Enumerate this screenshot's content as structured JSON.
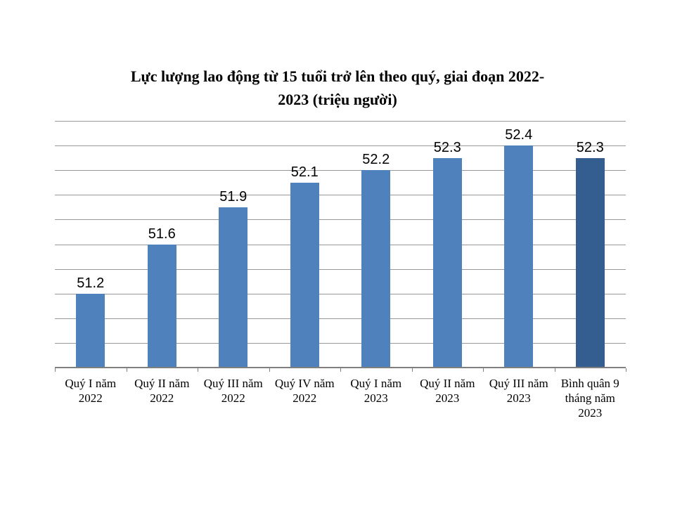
{
  "chart_data": {
    "type": "bar",
    "title": "Lực lượng lao động từ 15 tuổi trở lên theo quý, giai đoạn 2022-2023 (triệu người)",
    "title_lines": [
      "Lực lượng lao động từ 15 tuổi trở lên theo quý, giai đoạn 2022-",
      "2023 (triệu người)"
    ],
    "categories": [
      "Quý I năm 2022",
      "Quý II năm 2022",
      "Quý III năm 2022",
      "Quý IV năm 2022",
      "Quý I năm 2023",
      "Quý II năm 2023",
      "Quý III năm 2023",
      "Bình quân 9 tháng năm 2023"
    ],
    "values": [
      51.2,
      51.6,
      51.9,
      52.1,
      52.2,
      52.3,
      52.4,
      52.3
    ],
    "data_labels": [
      "51.2",
      "51.6",
      "51.9",
      "52.1",
      "52.2",
      "52.3",
      "52.4",
      "52.3"
    ],
    "unit": "triệu người",
    "ylim": [
      50.6,
      52.6
    ],
    "ytick_step": 0.2,
    "grid": true,
    "y_axis_labels_visible": false,
    "legend": "none",
    "highlight_index": 7,
    "colors": {
      "bar": "#4F81BD",
      "highlight_bar": "#335E8F",
      "gridline": "#989898",
      "axis": "#7F7F7F",
      "label_text": "#000000"
    }
  }
}
